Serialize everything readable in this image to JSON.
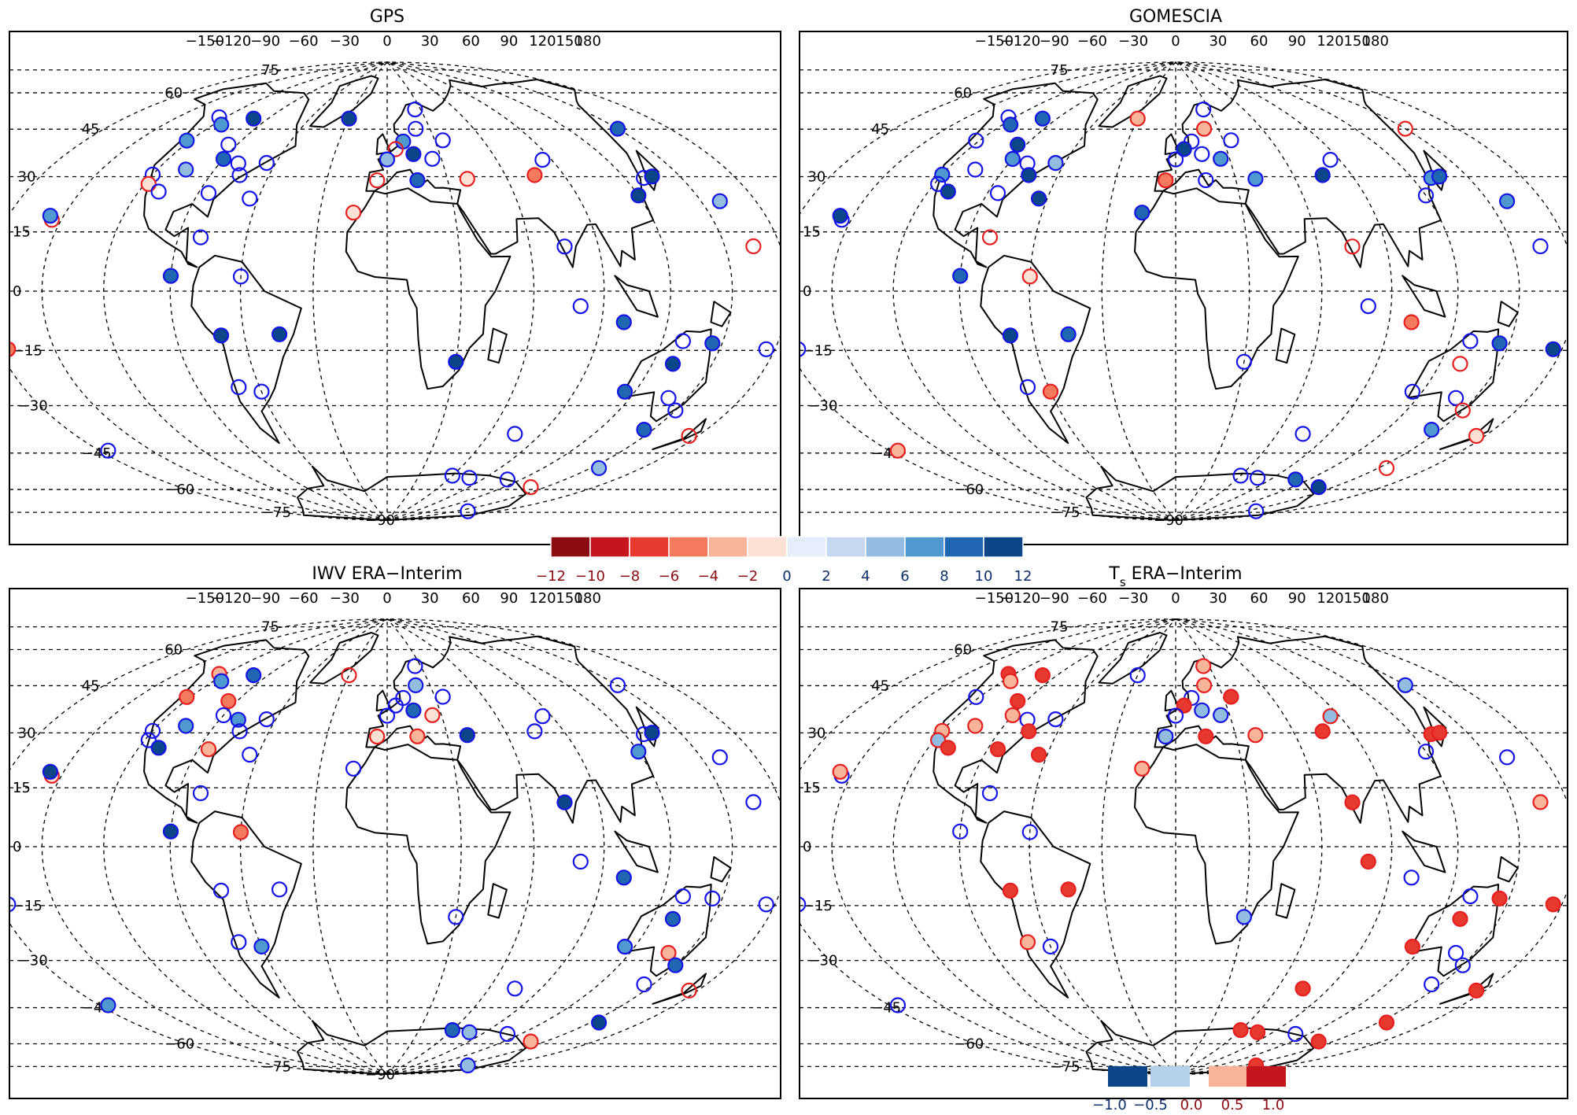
{
  "panels": [
    {
      "title": "GPS",
      "title_main": "GPS",
      "title_sub": ""
    },
    {
      "title": "GOMESCIA",
      "title_main": "GOMESCIA",
      "title_sub": ""
    },
    {
      "title": "IWV ERA−Interim",
      "title_main": "IWV ERA−Interim",
      "title_sub": ""
    },
    {
      "title": "Ts ERA−Interim",
      "title_main": "T",
      "title_sub": "s",
      "title_rest": " ERA−Interim"
    }
  ],
  "lon_labels": [
    "−150",
    "−120",
    "−90",
    "−60",
    "−30",
    "0",
    "30",
    "60",
    "90",
    "120",
    "150",
    "180"
  ],
  "lat_labels": [
    "75",
    "60",
    "45",
    "30",
    "15",
    "0",
    "−15",
    "−30",
    "−45",
    "−60",
    "−75",
    "−90"
  ],
  "colorbar_main": {
    "labels": [
      "−12",
      "−10",
      "−8",
      "−6",
      "−4",
      "−2",
      "0",
      "2",
      "4",
      "6",
      "8",
      "10",
      "12"
    ],
    "colors": [
      "#8b0d12",
      "#c4161c",
      "#e8392f",
      "#f47a5e",
      "#f9b49a",
      "#fde1d5",
      "#e6eefb",
      "#c6d8ef",
      "#92bde0",
      "#4f98d0",
      "#2066b0",
      "#0c4689"
    ]
  },
  "colorbar_ts": {
    "labels": [
      "−1.0",
      "−0.5",
      "0.0",
      "0.5",
      "1.0"
    ],
    "colors": [
      "#0c4689",
      "#b5d0ea",
      "#f9b49a",
      "#c4161c"
    ]
  },
  "colors": {
    "positive_ring": "#1414e6",
    "negative_ring": "#e62020",
    "coast": "#000000",
    "grid": "#000000"
  },
  "stations": [
    {
      "lon": -122,
      "lat": 49
    },
    {
      "lon": -124,
      "lat": 58
    },
    {
      "lon": -115,
      "lat": 56
    },
    {
      "lon": -100,
      "lat": 60
    },
    {
      "lon": -95,
      "lat": 50
    },
    {
      "lon": -90,
      "lat": 45
    },
    {
      "lon": -80,
      "lat": 44
    },
    {
      "lon": -75,
      "lat": 40
    },
    {
      "lon": -85,
      "lat": 33
    },
    {
      "lon": -105,
      "lat": 40
    },
    {
      "lon": -120,
      "lat": 37
    },
    {
      "lon": -118,
      "lat": 34
    },
    {
      "lon": -110,
      "lat": 32
    },
    {
      "lon": -155,
      "lat": 20
    },
    {
      "lon": -157,
      "lat": 21
    },
    {
      "lon": -65,
      "lat": 45
    },
    {
      "lon": -30,
      "lat": 64
    },
    {
      "lon": -64,
      "lat": 32
    },
    {
      "lon": -80,
      "lat": 18
    },
    {
      "lon": -90,
      "lat": 5
    },
    {
      "lon": -60,
      "lat": 5
    },
    {
      "lon": -70,
      "lat": -15
    },
    {
      "lon": -45,
      "lat": -15
    },
    {
      "lon": -70,
      "lat": -33
    },
    {
      "lon": -60,
      "lat": -35
    },
    {
      "lon": -175,
      "lat": -15
    },
    {
      "lon": -175,
      "lat": -45
    },
    {
      "lon": 25,
      "lat": 68
    },
    {
      "lon": 20,
      "lat": 60
    },
    {
      "lon": 10,
      "lat": 55
    },
    {
      "lon": 5,
      "lat": 52
    },
    {
      "lon": 0,
      "lat": 48
    },
    {
      "lon": 15,
      "lat": 50
    },
    {
      "lon": 25,
      "lat": 48
    },
    {
      "lon": 35,
      "lat": 55
    },
    {
      "lon": -5,
      "lat": 40
    },
    {
      "lon": 15,
      "lat": 40
    },
    {
      "lon": 40,
      "lat": 40
    },
    {
      "lon": -15,
      "lat": 28
    },
    {
      "lon": 75,
      "lat": 40
    },
    {
      "lon": 85,
      "lat": 45
    },
    {
      "lon": 75,
      "lat": 15
    },
    {
      "lon": 80,
      "lat": -5
    },
    {
      "lon": 100,
      "lat": -10
    },
    {
      "lon": 30,
      "lat": -25
    },
    {
      "lon": 75,
      "lat": -50
    },
    {
      "lon": 130,
      "lat": 35
    },
    {
      "lon": 120,
      "lat": 30
    },
    {
      "lon": 135,
      "lat": 35
    },
    {
      "lon": 160,
      "lat": 25
    },
    {
      "lon": 150,
      "lat": 50
    },
    {
      "lon": 165,
      "lat": 12
    },
    {
      "lon": 130,
      "lat": -15
    },
    {
      "lon": 145,
      "lat": -15
    },
    {
      "lon": 130,
      "lat": -22
    },
    {
      "lon": 115,
      "lat": -32
    },
    {
      "lon": 140,
      "lat": -32
    },
    {
      "lon": 150,
      "lat": -35
    },
    {
      "lon": 145,
      "lat": -42
    },
    {
      "lon": 175,
      "lat": -40
    },
    {
      "lon": 175,
      "lat": -15
    },
    {
      "lon": 155,
      "lat": -55
    },
    {
      "lon": 77,
      "lat": -68
    },
    {
      "lon": 110,
      "lat": -66
    },
    {
      "lon": 140,
      "lat": -66
    },
    {
      "lon": 60,
      "lat": -68
    },
    {
      "lon": 160,
      "lat": -78
    }
  ]
}
